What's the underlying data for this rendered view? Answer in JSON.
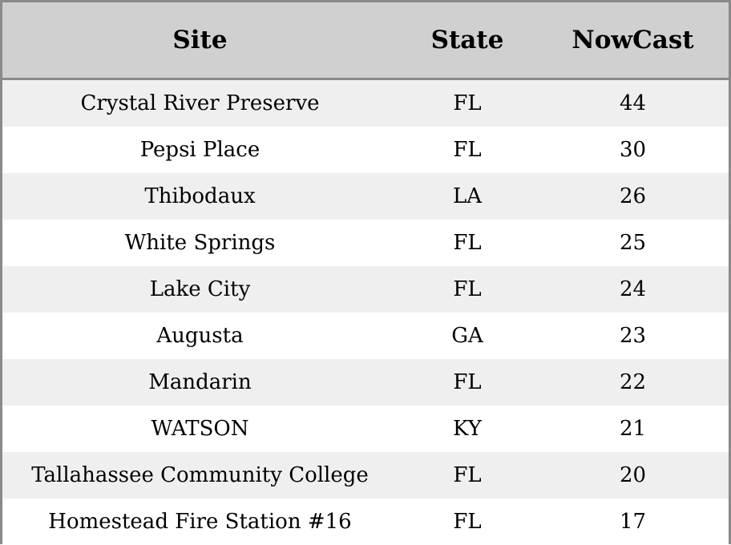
{
  "chart_data": {
    "type": "table",
    "columns": [
      "Site",
      "State",
      "NowCast"
    ],
    "rows": [
      [
        "Crystal River Preserve",
        "FL",
        44
      ],
      [
        "Pepsi Place",
        "FL",
        30
      ],
      [
        "Thibodaux",
        "LA",
        26
      ],
      [
        "White Springs",
        "FL",
        25
      ],
      [
        "Lake City",
        "FL",
        24
      ],
      [
        "Augusta",
        "GA",
        23
      ],
      [
        "Mandarin",
        "FL",
        22
      ],
      [
        "WATSON",
        "KY",
        21
      ],
      [
        "Tallahassee Community College",
        "FL",
        20
      ],
      [
        "Homestead Fire Station #16",
        "FL",
        17
      ]
    ]
  },
  "colors": {
    "header_bg": "#d0d0d0",
    "row_alt_bg": "#efefef",
    "row_bg": "#ffffff",
    "border": "#8a8a8a"
  }
}
